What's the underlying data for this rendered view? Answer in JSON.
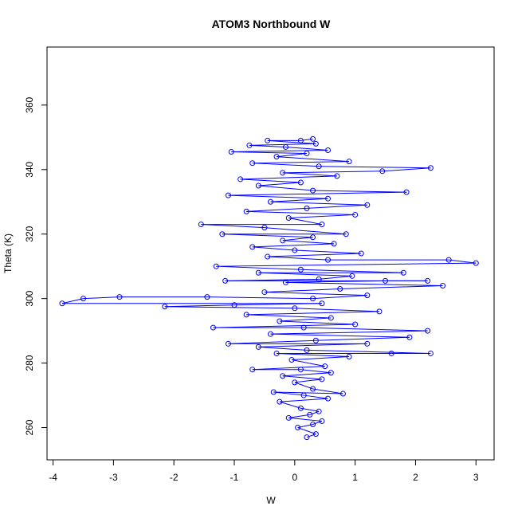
{
  "chart_data": {
    "type": "scatter",
    "title": "ATOM3 Northbound W",
    "xlabel": "W",
    "ylabel": "Theta (K)",
    "xlim": [
      -4.1,
      3.3
    ],
    "ylim": [
      250,
      378
    ],
    "xticks": [
      -4,
      -3,
      -2,
      -1,
      0,
      1,
      2,
      3
    ],
    "yticks": [
      260,
      280,
      300,
      320,
      340,
      360
    ],
    "grid": false,
    "legend": "none",
    "color": "#0000ff",
    "series": [
      {
        "style": "points-and-lines",
        "points": [
          [
            0.2,
            257
          ],
          [
            0.35,
            258
          ],
          [
            0.05,
            260
          ],
          [
            0.3,
            261
          ],
          [
            0.45,
            262
          ],
          [
            -0.1,
            263
          ],
          [
            0.25,
            264
          ],
          [
            0.4,
            265
          ],
          [
            0.1,
            266
          ],
          [
            -0.25,
            268
          ],
          [
            0.55,
            269
          ],
          [
            0.15,
            270
          ],
          [
            -0.35,
            271
          ],
          [
            0.8,
            270.5
          ],
          [
            0.3,
            272
          ],
          [
            0.0,
            274
          ],
          [
            0.45,
            275
          ],
          [
            -0.2,
            276
          ],
          [
            0.6,
            277
          ],
          [
            0.1,
            278
          ],
          [
            -0.7,
            278
          ],
          [
            0.5,
            279
          ],
          [
            -0.05,
            281
          ],
          [
            0.9,
            282
          ],
          [
            -0.3,
            283
          ],
          [
            1.6,
            283
          ],
          [
            2.25,
            283
          ],
          [
            0.2,
            284
          ],
          [
            -0.6,
            285
          ],
          [
            1.2,
            286
          ],
          [
            -1.1,
            286
          ],
          [
            0.35,
            287
          ],
          [
            1.9,
            288
          ],
          [
            -0.4,
            289
          ],
          [
            2.2,
            290
          ],
          [
            0.15,
            291
          ],
          [
            -1.35,
            291
          ],
          [
            1.0,
            292
          ],
          [
            -0.25,
            293
          ],
          [
            0.6,
            294
          ],
          [
            -0.8,
            295
          ],
          [
            1.4,
            296
          ],
          [
            0.0,
            297
          ],
          [
            -2.15,
            297.5
          ],
          [
            -1.0,
            298
          ],
          [
            0.45,
            298.5
          ],
          [
            -3.85,
            298.5
          ],
          [
            -3.5,
            300
          ],
          [
            -2.9,
            300.5
          ],
          [
            -1.45,
            300.5
          ],
          [
            0.3,
            300
          ],
          [
            1.2,
            301
          ],
          [
            -0.5,
            302
          ],
          [
            0.75,
            303
          ],
          [
            2.45,
            304
          ],
          [
            -0.15,
            305
          ],
          [
            1.5,
            305.5
          ],
          [
            2.2,
            305.5
          ],
          [
            -1.15,
            305.5
          ],
          [
            0.4,
            306
          ],
          [
            0.95,
            307
          ],
          [
            -0.6,
            308
          ],
          [
            1.8,
            308
          ],
          [
            0.1,
            309
          ],
          [
            -1.3,
            310
          ],
          [
            3.0,
            311
          ],
          [
            2.55,
            312
          ],
          [
            0.55,
            312
          ],
          [
            -0.45,
            313
          ],
          [
            1.1,
            314
          ],
          [
            0.0,
            315
          ],
          [
            -0.7,
            316
          ],
          [
            0.65,
            317
          ],
          [
            -0.2,
            318
          ],
          [
            0.3,
            319
          ],
          [
            -1.2,
            320
          ],
          [
            0.85,
            320
          ],
          [
            -0.5,
            322
          ],
          [
            -1.55,
            323
          ],
          [
            0.45,
            323
          ],
          [
            -0.1,
            325
          ],
          [
            1.0,
            326
          ],
          [
            -0.8,
            327
          ],
          [
            0.2,
            328
          ],
          [
            1.2,
            329
          ],
          [
            -0.4,
            330
          ],
          [
            0.55,
            331
          ],
          [
            -1.1,
            332
          ],
          [
            1.85,
            333
          ],
          [
            0.3,
            333.5
          ],
          [
            -0.6,
            335
          ],
          [
            0.1,
            336
          ],
          [
            -0.9,
            337
          ],
          [
            0.7,
            338
          ],
          [
            -0.2,
            339
          ],
          [
            1.45,
            339.5
          ],
          [
            2.25,
            340.5
          ],
          [
            0.4,
            341
          ],
          [
            -0.7,
            342
          ],
          [
            0.9,
            342.5
          ],
          [
            -0.3,
            344
          ],
          [
            0.2,
            345
          ],
          [
            -1.05,
            345.5
          ],
          [
            0.55,
            346
          ],
          [
            -0.15,
            347
          ],
          [
            -0.75,
            347.5
          ],
          [
            0.35,
            348
          ],
          [
            -0.45,
            349
          ],
          [
            0.1,
            349
          ],
          [
            0.3,
            349.5
          ]
        ]
      }
    ]
  }
}
